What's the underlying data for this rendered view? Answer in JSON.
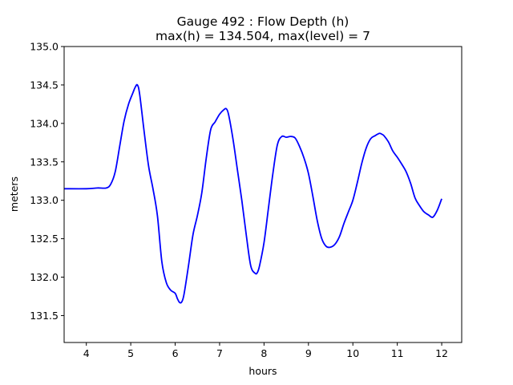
{
  "chart_data": {
    "type": "line",
    "title_line1": "Gauge 492 : Flow Depth (h)",
    "title_line2": "max(h) = 134.504,    max(level) = 7",
    "xlabel": "hours",
    "ylabel": "meters",
    "xlim": [
      3.5,
      12.45
    ],
    "ylim": [
      131.15,
      135.0
    ],
    "xticks": [
      4,
      5,
      6,
      7,
      8,
      9,
      10,
      11,
      12
    ],
    "yticks": [
      131.5,
      132.0,
      132.5,
      133.0,
      133.5,
      134.0,
      134.5,
      135.0
    ],
    "xtick_labels": [
      "4",
      "5",
      "6",
      "7",
      "8",
      "9",
      "10",
      "11",
      "12"
    ],
    "ytick_labels": [
      "131.5",
      "132.0",
      "132.5",
      "133.0",
      "133.5",
      "134.0",
      "134.5",
      "135.0"
    ],
    "grid": false,
    "series": [
      {
        "color": "#0000ff",
        "x": [
          3.5,
          4.0,
          4.25,
          4.45,
          4.55,
          4.65,
          4.75,
          4.85,
          4.95,
          5.05,
          5.1,
          5.15,
          5.2,
          5.3,
          5.4,
          5.5,
          5.6,
          5.7,
          5.8,
          5.9,
          6.0,
          6.05,
          6.1,
          6.15,
          6.2,
          6.3,
          6.4,
          6.5,
          6.6,
          6.7,
          6.8,
          6.9,
          7.0,
          7.1,
          7.15,
          7.2,
          7.3,
          7.4,
          7.5,
          7.6,
          7.7,
          7.8,
          7.85,
          7.9,
          8.0,
          8.1,
          8.2,
          8.3,
          8.4,
          8.5,
          8.6,
          8.7,
          8.8,
          8.9,
          9.0,
          9.1,
          9.2,
          9.3,
          9.4,
          9.5,
          9.6,
          9.7,
          9.8,
          9.9,
          10.0,
          10.1,
          10.2,
          10.3,
          10.4,
          10.5,
          10.6,
          10.65,
          10.7,
          10.8,
          10.9,
          11.0,
          11.1,
          11.2,
          11.3,
          11.4,
          11.5,
          11.6,
          11.7,
          11.8,
          11.9,
          12.0
        ],
        "y": [
          133.15,
          133.15,
          133.16,
          133.16,
          133.21,
          133.37,
          133.7,
          134.03,
          134.25,
          134.4,
          134.47,
          134.5,
          134.38,
          133.9,
          133.45,
          133.15,
          132.8,
          132.2,
          131.93,
          131.83,
          131.79,
          131.72,
          131.67,
          131.68,
          131.78,
          132.15,
          132.55,
          132.8,
          133.1,
          133.55,
          133.92,
          134.02,
          134.12,
          134.18,
          134.19,
          134.12,
          133.8,
          133.4,
          133.0,
          132.55,
          132.15,
          132.05,
          132.06,
          132.15,
          132.45,
          132.9,
          133.35,
          133.72,
          133.83,
          133.82,
          133.83,
          133.81,
          133.7,
          133.55,
          133.35,
          133.05,
          132.73,
          132.5,
          132.4,
          132.39,
          132.43,
          132.53,
          132.7,
          132.85,
          133.0,
          133.23,
          133.48,
          133.68,
          133.8,
          133.84,
          133.87,
          133.86,
          133.84,
          133.76,
          133.64,
          133.56,
          133.47,
          133.37,
          133.22,
          133.03,
          132.93,
          132.85,
          132.81,
          132.78,
          132.87,
          133.02
        ]
      }
    ]
  }
}
